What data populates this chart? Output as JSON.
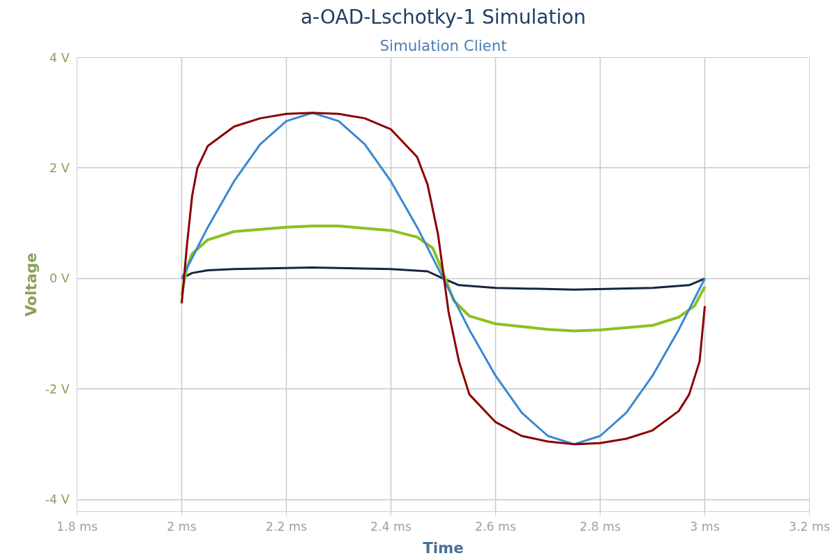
{
  "chart_data": {
    "type": "line",
    "title": "a-OAD-Lschotky-1 Simulation",
    "subtitle": "Simulation Client",
    "xlabel": "Time",
    "ylabel": "Voltage",
    "xlim": [
      1.8,
      3.2
    ],
    "ylim": [
      -4.22,
      4
    ],
    "xticks": [
      {
        "value": 1.8,
        "label": "1.8 ms"
      },
      {
        "value": 2,
        "label": "2 ms"
      },
      {
        "value": 2.2,
        "label": "2.2 ms"
      },
      {
        "value": 2.4,
        "label": "2.4 ms"
      },
      {
        "value": 2.6,
        "label": "2.6 ms"
      },
      {
        "value": 2.8,
        "label": "2.8 ms"
      },
      {
        "value": 3,
        "label": "3 ms"
      },
      {
        "value": 3.2,
        "label": "3.2 ms"
      }
    ],
    "yticks": [
      {
        "value": -4,
        "label": "-4 V"
      },
      {
        "value": -2,
        "label": "-2 V"
      },
      {
        "value": 0,
        "label": "0 V"
      },
      {
        "value": 2,
        "label": "2 V"
      },
      {
        "value": 4,
        "label": "4 V"
      }
    ],
    "grid": true,
    "marker": "none",
    "line_style": "solid",
    "series": [
      {
        "color": "#15263e",
        "x": [
          2.0,
          2.02,
          2.05,
          2.1,
          2.25,
          2.4,
          2.47,
          2.5,
          2.53,
          2.6,
          2.75,
          2.9,
          2.97,
          3.0
        ],
        "values": [
          0,
          0.1,
          0.15,
          0.17,
          0.2,
          0.17,
          0.13,
          0.0,
          -0.12,
          -0.17,
          -0.2,
          -0.17,
          -0.12,
          0
        ]
      },
      {
        "color": "#8dc021",
        "x": [
          2.0,
          2.01,
          2.02,
          2.05,
          2.1,
          2.2,
          2.25,
          2.3,
          2.4,
          2.45,
          2.48,
          2.5,
          2.52,
          2.55,
          2.6,
          2.7,
          2.75,
          2.8,
          2.9,
          2.95,
          2.98,
          3.0
        ],
        "values": [
          -0.3,
          0.2,
          0.45,
          0.7,
          0.85,
          0.93,
          0.95,
          0.95,
          0.87,
          0.75,
          0.55,
          0.1,
          -0.4,
          -0.68,
          -0.82,
          -0.92,
          -0.95,
          -0.93,
          -0.85,
          -0.7,
          -0.5,
          -0.15
        ]
      },
      {
        "color": "#3a87d4",
        "x": [
          2.0,
          2.05,
          2.1,
          2.15,
          2.2,
          2.25,
          2.3,
          2.35,
          2.4,
          2.45,
          2.5,
          2.55,
          2.6,
          2.65,
          2.7,
          2.75,
          2.8,
          2.85,
          2.9,
          2.95,
          3.0
        ],
        "values": [
          0,
          0.93,
          1.76,
          2.43,
          2.85,
          3.0,
          2.85,
          2.43,
          1.76,
          0.93,
          0,
          -0.93,
          -1.76,
          -2.43,
          -2.85,
          -3.0,
          -2.85,
          -2.43,
          -1.76,
          -0.93,
          0
        ]
      },
      {
        "color": "#8b0000",
        "x": [
          2.0,
          2.01,
          2.02,
          2.03,
          2.05,
          2.1,
          2.15,
          2.2,
          2.25,
          2.3,
          2.35,
          2.4,
          2.45,
          2.47,
          2.49,
          2.5,
          2.51,
          2.53,
          2.55,
          2.6,
          2.65,
          2.7,
          2.75,
          2.8,
          2.85,
          2.9,
          2.95,
          2.97,
          2.99,
          3.0
        ],
        "values": [
          -0.45,
          0.6,
          1.5,
          2.0,
          2.4,
          2.75,
          2.9,
          2.98,
          3.0,
          2.98,
          2.9,
          2.7,
          2.2,
          1.7,
          0.8,
          0.1,
          -0.6,
          -1.5,
          -2.1,
          -2.6,
          -2.85,
          -2.95,
          -3.0,
          -2.98,
          -2.9,
          -2.75,
          -2.4,
          -2.1,
          -1.5,
          -0.5
        ]
      }
    ]
  }
}
